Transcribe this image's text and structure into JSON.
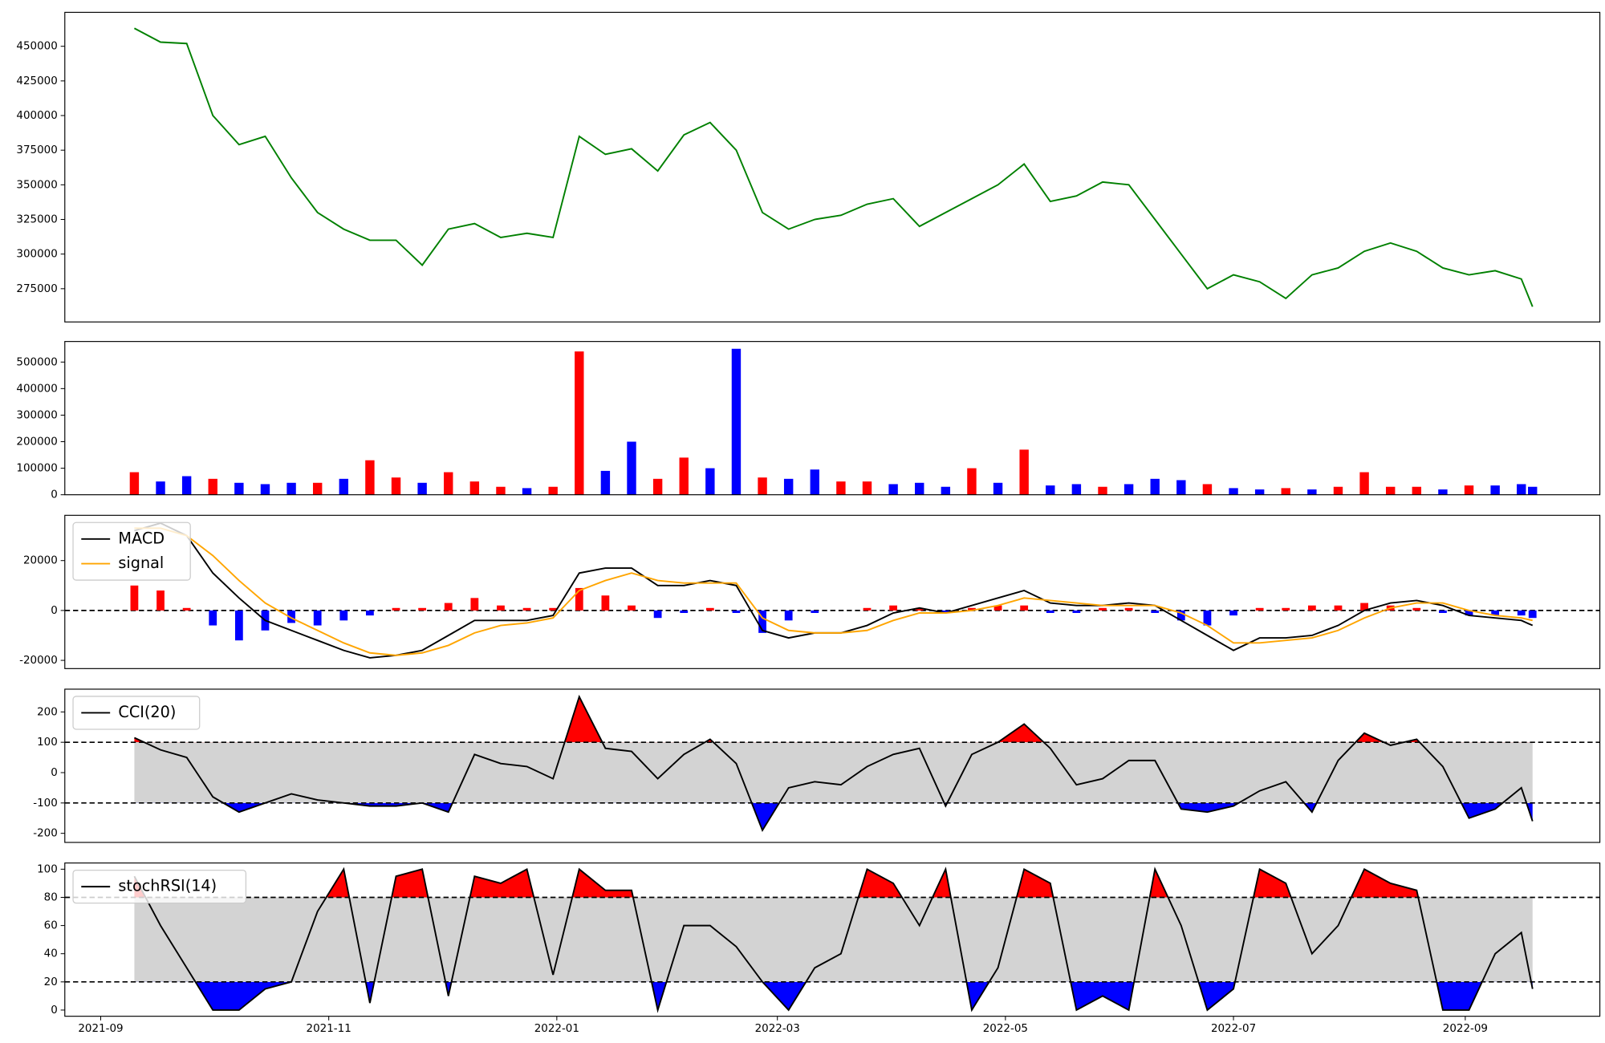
{
  "chart_data": [
    {
      "type": "line",
      "x": [
        9,
        16,
        23,
        30,
        37,
        44,
        51,
        58,
        65,
        72,
        79,
        86,
        93,
        100,
        107,
        114,
        121,
        128,
        135,
        142,
        149,
        156,
        163,
        170,
        177,
        184,
        191,
        198,
        205,
        212,
        219,
        226,
        233,
        240,
        247,
        254,
        261,
        268,
        275,
        282,
        289,
        296,
        303,
        310,
        317,
        324,
        331,
        338,
        345,
        352,
        359,
        366,
        373,
        380,
        383
      ],
      "xlim": [
        -9.6,
        401
      ],
      "series": [
        {
          "color": "#008000",
          "values": [
            463000,
            453000,
            452000,
            400000,
            379000,
            385000,
            355000,
            330000,
            318000,
            310000,
            310000,
            292000,
            318000,
            322000,
            312000,
            315000,
            312000,
            385000,
            372000,
            376000,
            360000,
            386000,
            395000,
            375000,
            330000,
            318000,
            325000,
            328000,
            336000,
            340000,
            320000,
            330000,
            340000,
            350000,
            365000,
            338000,
            342000,
            352000,
            350000,
            325000,
            300000,
            275000,
            285000,
            280000,
            268000,
            285000,
            290000,
            302000,
            308000,
            302000,
            290000,
            285000,
            288000,
            282000,
            262000
          ]
        }
      ],
      "ylim": [
        251000,
        474500
      ],
      "yticks": [
        275000,
        300000,
        325000,
        350000,
        375000,
        400000,
        425000,
        450000
      ]
    },
    {
      "type": "bar",
      "values": [
        85000,
        50000,
        70000,
        60000,
        45000,
        40000,
        45000,
        45000,
        60000,
        130000,
        65000,
        45000,
        85000,
        50000,
        30000,
        25000,
        30000,
        540000,
        90000,
        200000,
        60000,
        140000,
        100000,
        550000,
        65000,
        60000,
        95000,
        50000,
        50000,
        40000,
        45000,
        30000,
        100000,
        45000,
        170000,
        35000,
        40000,
        30000,
        40000,
        60000,
        55000,
        40000,
        25000,
        20000,
        25000,
        20000,
        30000,
        85000,
        30000,
        30000,
        20000,
        35000,
        35000,
        40000,
        30000
      ],
      "colors": [
        "red",
        "blue",
        "blue",
        "red",
        "blue",
        "blue",
        "blue",
        "red",
        "blue",
        "red",
        "red",
        "blue",
        "red",
        "red",
        "red",
        "blue",
        "red",
        "red",
        "blue",
        "blue",
        "red",
        "red",
        "blue",
        "blue",
        "red",
        "blue",
        "blue",
        "red",
        "red",
        "blue",
        "blue",
        "blue",
        "red",
        "blue",
        "red",
        "blue",
        "blue",
        "red",
        "blue",
        "blue",
        "blue",
        "red",
        "blue",
        "blue",
        "red",
        "blue",
        "red",
        "red",
        "red",
        "red",
        "blue",
        "red",
        "blue",
        "blue",
        "blue"
      ],
      "ylim": [
        0,
        577500
      ],
      "yticks": [
        0,
        100000,
        200000,
        300000,
        400000,
        500000
      ]
    },
    {
      "type": "macd",
      "series": [
        {
          "name": "MACD",
          "color": "black",
          "values": [
            32000,
            35000,
            30000,
            15000,
            5000,
            -4000,
            -8000,
            -12000,
            -16000,
            -19000,
            -18000,
            -16000,
            -10000,
            -4000,
            -4000,
            -4000,
            -2000,
            15000,
            17000,
            17000,
            10000,
            10000,
            12000,
            10000,
            -8000,
            -11000,
            -9000,
            -9000,
            -6000,
            -1000,
            1000,
            -1000,
            2000,
            5000,
            8000,
            3000,
            2000,
            2000,
            3000,
            2000,
            -4000,
            -10000,
            -16000,
            -11000,
            -11000,
            -10000,
            -6000,
            0,
            3000,
            4000,
            2000,
            -2000,
            -3000,
            -4000,
            -6000
          ]
        },
        {
          "name": "signal",
          "color": "orange",
          "values": [
            33000,
            33000,
            30000,
            22000,
            12000,
            3000,
            -3000,
            -8000,
            -13000,
            -17000,
            -18000,
            -17000,
            -14000,
            -9000,
            -6000,
            -5000,
            -3000,
            8000,
            12000,
            15000,
            12000,
            11000,
            11000,
            11000,
            -3000,
            -8000,
            -9000,
            -9000,
            -8000,
            -4000,
            -1000,
            -1000,
            0,
            2000,
            5000,
            4000,
            3000,
            2000,
            2000,
            2000,
            -1000,
            -6000,
            -13000,
            -13000,
            -12000,
            -11000,
            -8000,
            -3000,
            1000,
            3000,
            3000,
            0,
            -2000,
            -3000,
            -4000
          ]
        }
      ],
      "histogram": {
        "values": [
          10000,
          8000,
          1000,
          -6000,
          -12000,
          -8000,
          -5000,
          -6000,
          -4000,
          -2000,
          1000,
          1000,
          3000,
          5000,
          2000,
          1000,
          1000,
          9000,
          6000,
          2000,
          -3000,
          -1000,
          1000,
          -1000,
          -9000,
          -4000,
          -1000,
          0,
          1000,
          2000,
          1000,
          -1000,
          1000,
          2000,
          2000,
          -1000,
          -1000,
          1000,
          1000,
          -1000,
          -4000,
          -6000,
          -2000,
          1000,
          1000,
          2000,
          2000,
          3000,
          2000,
          1000,
          -1000,
          -2000,
          -2000,
          -2000,
          -3000
        ],
        "pos_color": "red",
        "neg_color": "blue"
      },
      "hlines": [
        0
      ],
      "ylim": [
        -23300,
        38140
      ],
      "yticks": [
        -20000,
        0,
        20000
      ],
      "legend": "upper left"
    },
    {
      "type": "oscillator",
      "series": [
        {
          "name": "CCI(20)",
          "color": "black",
          "values": [
            115,
            75,
            50,
            -80,
            -130,
            -100,
            -70,
            -90,
            -100,
            -110,
            -110,
            -100,
            -130,
            60,
            30,
            20,
            -20,
            250,
            80,
            70,
            -20,
            60,
            110,
            30,
            -190,
            -50,
            -30,
            -40,
            20,
            60,
            80,
            -110,
            60,
            100,
            160,
            80,
            -40,
            -20,
            40,
            40,
            -120,
            -130,
            -110,
            -60,
            -30,
            -130,
            40,
            130,
            90,
            110,
            20,
            -150,
            -120,
            -50,
            -160
          ]
        }
      ],
      "thresholds": [
        -100,
        100
      ],
      "fill_colors": {
        "band": "lightgray",
        "above": "red",
        "below": "blue"
      },
      "ylim": [
        -230,
        275
      ],
      "yticks": [
        -200,
        -100,
        0,
        100,
        200
      ],
      "legend": "upper left"
    },
    {
      "type": "oscillator",
      "series": [
        {
          "name": "stochRSI(14)",
          "color": "black",
          "values": [
            95,
            60,
            30,
            0,
            0,
            15,
            20,
            70,
            100,
            5,
            95,
            100,
            10,
            95,
            90,
            100,
            25,
            100,
            85,
            85,
            0,
            60,
            60,
            45,
            20,
            0,
            30,
            40,
            100,
            90,
            60,
            100,
            0,
            30,
            100,
            90,
            0,
            10,
            0,
            100,
            60,
            0,
            15,
            100,
            90,
            40,
            60,
            100,
            90,
            85,
            0,
            0,
            40,
            55,
            15
          ]
        }
      ],
      "thresholds": [
        20,
        80
      ],
      "fill_colors": {
        "band": "lightgray",
        "above": "red",
        "below": "blue"
      },
      "ylim": [
        -4.4,
        104.4
      ],
      "yticks": [
        0,
        20,
        40,
        60,
        80,
        100
      ],
      "legend": "upper left",
      "xticks": [
        {
          "value": 0,
          "label": "2021-09"
        },
        {
          "value": 61,
          "label": "2021-11"
        },
        {
          "value": 122,
          "label": "2022-01"
        },
        {
          "value": 181,
          "label": "2022-03"
        },
        {
          "value": 242,
          "label": "2022-05"
        },
        {
          "value": 303,
          "label": "2022-07"
        },
        {
          "value": 365,
          "label": "2022-09"
        }
      ]
    }
  ]
}
